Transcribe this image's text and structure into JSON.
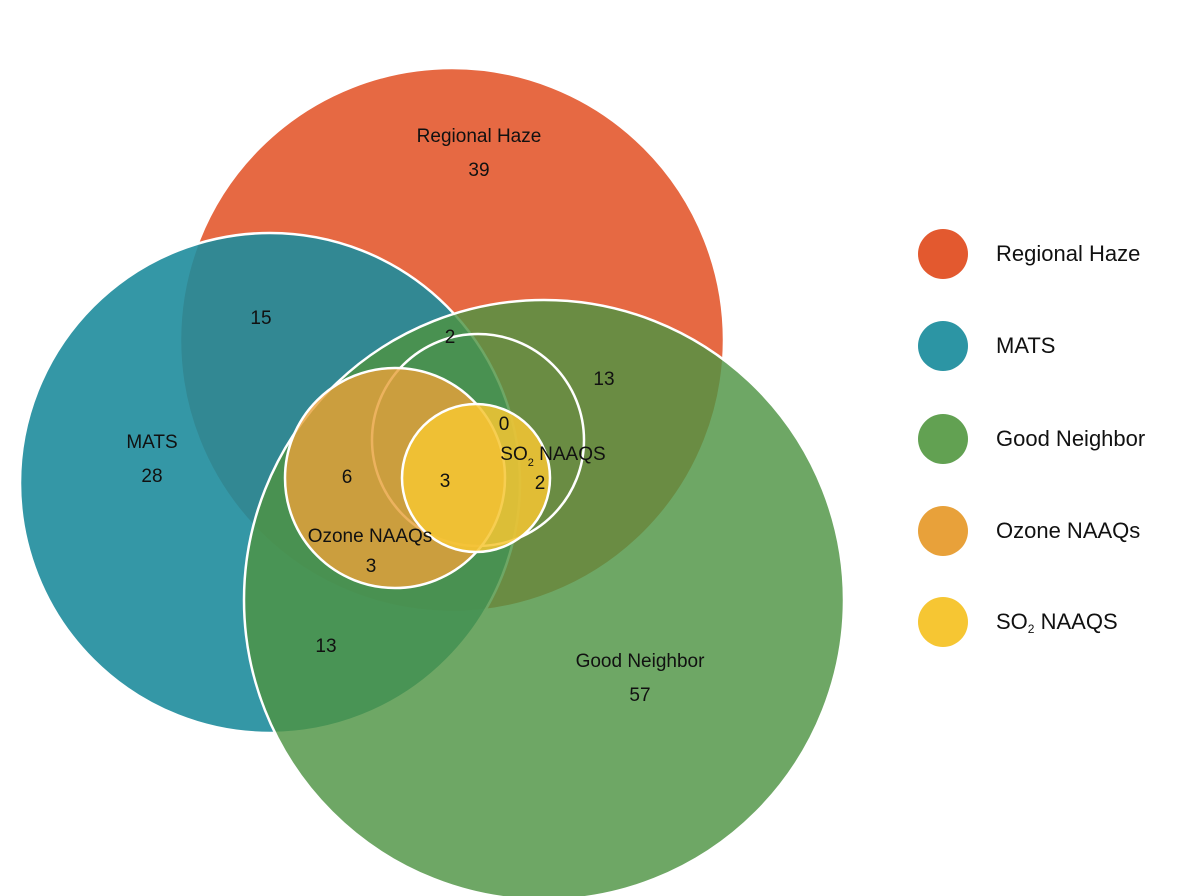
{
  "sets": [
    {
      "id": "regional",
      "name": "Regional Haze",
      "total": "39",
      "color": "#e3592f"
    },
    {
      "id": "mats",
      "name": "MATS",
      "total": "28",
      "color": "#1e8c9c"
    },
    {
      "id": "good",
      "name": "Good Neighbor",
      "total": "57",
      "color": "#4e9443"
    },
    {
      "id": "ozone",
      "name": "Ozone NAAQs",
      "total": "",
      "color": "#e8a13a"
    },
    {
      "id": "so2",
      "name": "SO2 NAAQS",
      "name_main": "SO",
      "name_sub": "2",
      "name_tail": " NAAQS",
      "total": "",
      "color": "#f6c633"
    }
  ],
  "intersections": {
    "regional_mats": "15",
    "regional_mats_good": "2",
    "regional_good": "13",
    "mats_good_ozone": "6",
    "mats_good_ozone_so2": "3",
    "regional_good_so2_only": "0",
    "good_so2": "2",
    "good_ozone": "3",
    "mats_good": "13"
  },
  "legend": [
    {
      "label": "Regional Haze",
      "color": "#e3592f"
    },
    {
      "label": "MATS",
      "color": "#1e8c9c"
    },
    {
      "label": "Good Neighbor",
      "color": "#4e9443"
    },
    {
      "label": "Ozone NAAQs",
      "color": "#e8a13a"
    },
    {
      "label_main": "SO",
      "label_sub": "2",
      "label_tail": " NAAQS",
      "color": "#f6c633"
    }
  ]
}
